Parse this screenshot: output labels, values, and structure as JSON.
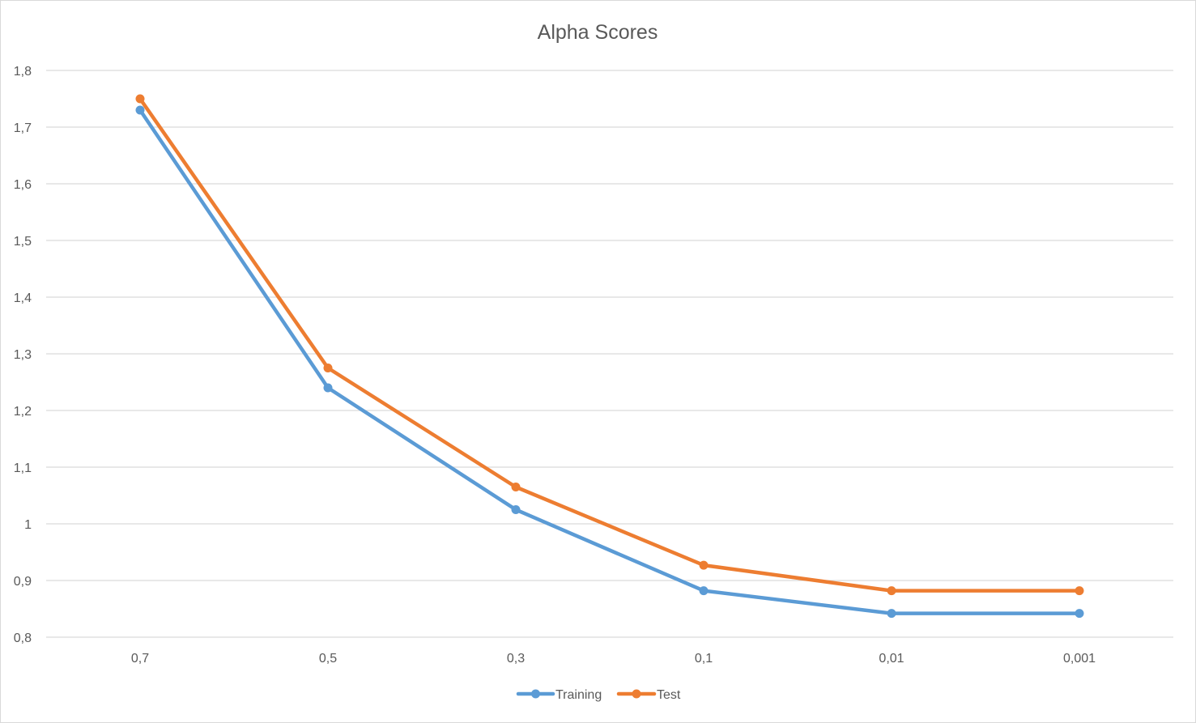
{
  "chart_data": {
    "type": "line",
    "title": "Alpha Scores",
    "xlabel": "",
    "ylabel": "",
    "categories": [
      "0,7",
      "0,5",
      "0,3",
      "0,1",
      "0,01",
      "0,001"
    ],
    "ylim": [
      0.8,
      1.8
    ],
    "yticks": [
      0.8,
      0.9,
      1.0,
      1.1,
      1.2,
      1.3,
      1.4,
      1.5,
      1.6,
      1.7,
      1.8
    ],
    "ytick_labels": [
      "0,8",
      "0,9",
      "1",
      "1,1",
      "1,2",
      "1,3",
      "1,4",
      "1,5",
      "1,6",
      "1,7",
      "1,8"
    ],
    "grid": true,
    "legend_position": "bottom",
    "series": [
      {
        "name": "Training",
        "color": "#5b9bd5",
        "values": [
          1.73,
          1.24,
          1.025,
          0.882,
          0.842,
          0.842
        ]
      },
      {
        "name": "Test",
        "color": "#ed7d31",
        "values": [
          1.75,
          1.275,
          1.065,
          0.927,
          0.882,
          0.882
        ]
      }
    ]
  }
}
